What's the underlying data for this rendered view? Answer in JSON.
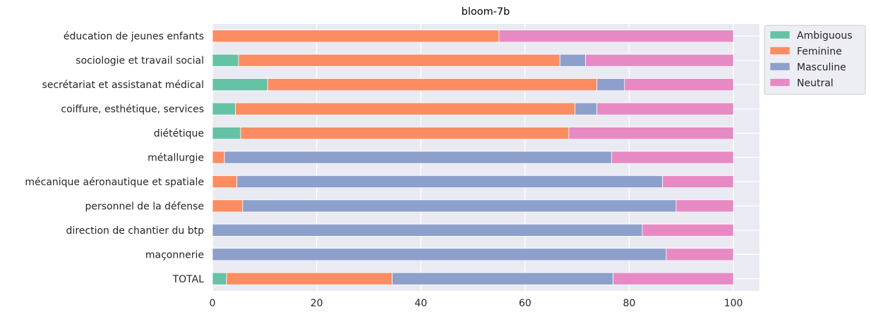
{
  "chart_data": {
    "type": "bar",
    "orientation": "horizontal",
    "stacked": true,
    "title": "bloom-7b",
    "xlabel": "",
    "ylabel": "",
    "xlim": [
      0,
      105
    ],
    "xticks": [
      0,
      20,
      40,
      60,
      80,
      100
    ],
    "grid": true,
    "legend_position": "top-right, outside plot",
    "categories": [
      "éducation de jeunes enfants",
      "sociologie et travail social",
      "secrétariat et assistanat médical",
      "coiffure, esthétique, services",
      "diététique",
      "métallurgie",
      "mécanique aéronautique et spatiale",
      "personnel de la défense",
      "direction de chantier du btp",
      "maçonnerie",
      "TOTAL"
    ],
    "series": [
      {
        "name": "Ambiguous",
        "color": "#66c2a5",
        "values": [
          0,
          5.0,
          10.6,
          4.4,
          5.4,
          0,
          0,
          0,
          0,
          0,
          2.7
        ]
      },
      {
        "name": "Feminine",
        "color": "#fc8d62",
        "values": [
          55.0,
          61.7,
          63.2,
          65.2,
          63.0,
          2.3,
          4.7,
          5.8,
          0,
          0,
          31.8
        ]
      },
      {
        "name": "Masculine",
        "color": "#8da0cb",
        "values": [
          0,
          4.9,
          5.3,
          4.2,
          0,
          74.3,
          81.7,
          83.2,
          82.5,
          87.1,
          42.4
        ]
      },
      {
        "name": "Neutral",
        "color": "#e78ac3",
        "values": [
          45.0,
          28.4,
          20.9,
          26.2,
          31.6,
          23.4,
          13.6,
          11.0,
          17.5,
          12.9,
          23.1
        ]
      }
    ]
  }
}
